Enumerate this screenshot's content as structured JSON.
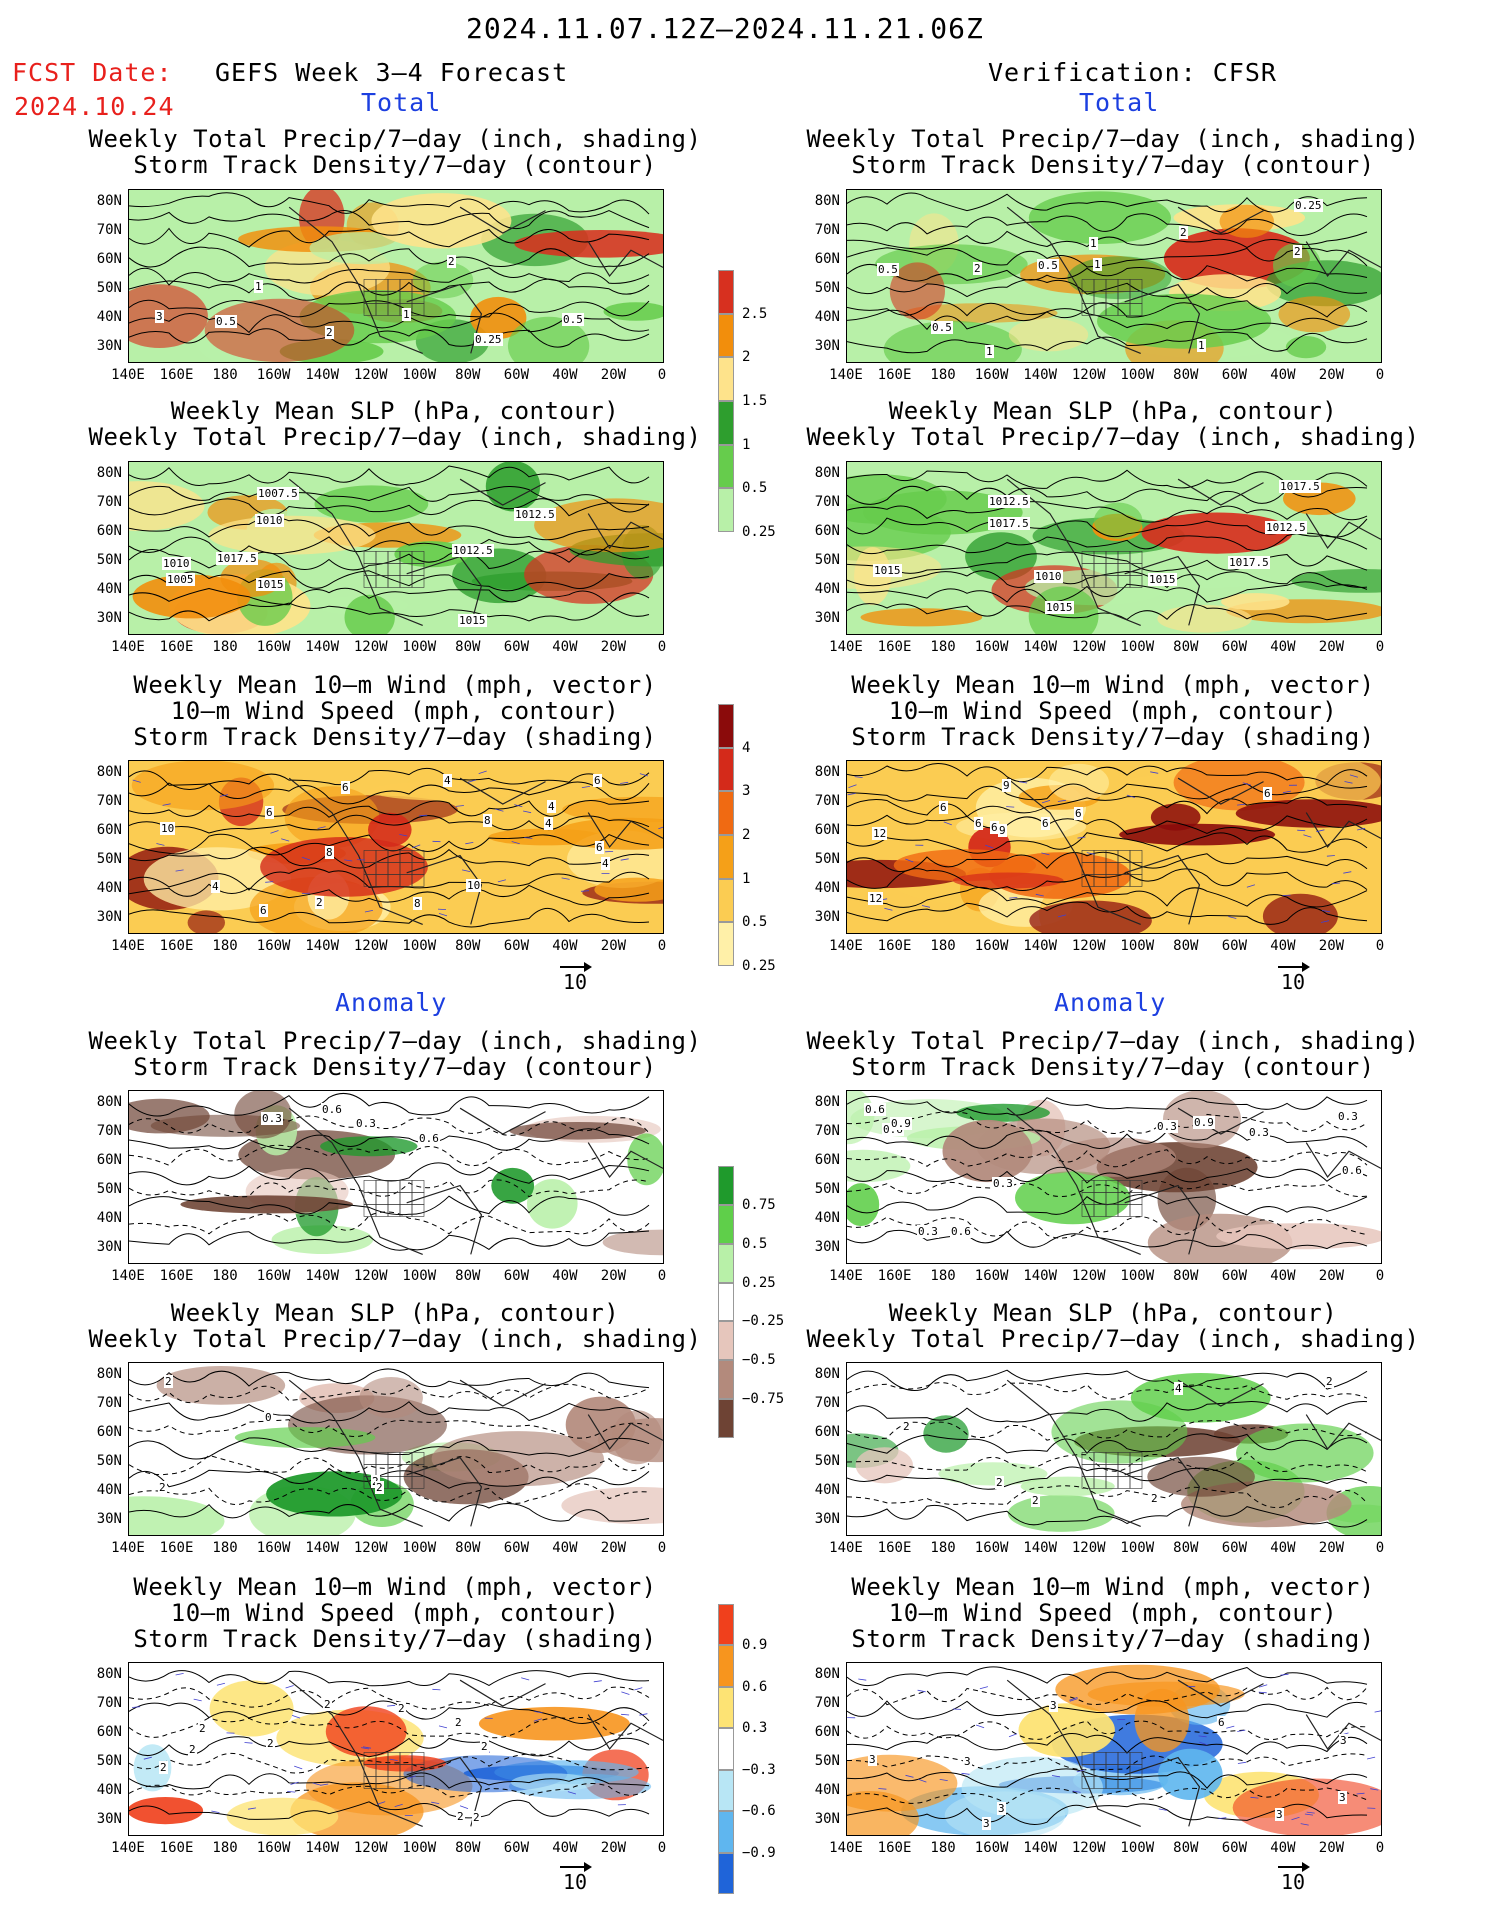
{
  "header": {
    "period": "2024.11.07.12Z–2024.11.21.06Z",
    "fcst_label": "FCST Date:",
    "fcst_date": "2024.10.24",
    "forecast_title": "GEFS Week 3–4 Forecast",
    "verification_title": "Verification: CFSR"
  },
  "sections": {
    "total": "Total",
    "anomaly": "Anomaly"
  },
  "axes": {
    "lat_labels": [
      "80N",
      "70N",
      "60N",
      "50N",
      "40N",
      "30N"
    ],
    "lon_labels": [
      "140E",
      "160E",
      "180",
      "160W",
      "140W",
      "120W",
      "100W",
      "80W",
      "60W",
      "40W",
      "20W",
      "0"
    ]
  },
  "titles": {
    "precip_storm": [
      "Weekly Total Precip/7–day (inch, shading)",
      "Storm Track Density/7–day (contour)"
    ],
    "slp_precip": [
      "Weekly Mean SLP (hPa, contour)",
      "Weekly Total Precip/7–day (inch, shading)"
    ],
    "wind": [
      "Weekly Mean 10–m Wind (mph, vector)",
      "10–m Wind Speed (mph, contour)",
      "Storm Track Density/7–day (shading)"
    ]
  },
  "vector_reference": "10",
  "colorbars": {
    "precip_total": {
      "labels": [
        "2.5",
        "2",
        "1.5",
        "1",
        "0.5",
        "0.25"
      ],
      "colors": [
        "#d7301f",
        "#f28e0c",
        "#fee38b",
        "#2e9e2e",
        "#66cc4c",
        "#b8f0a8"
      ]
    },
    "storm_total": {
      "labels": [
        "4",
        "3",
        "2",
        "1",
        "0.5",
        "0.25"
      ],
      "colors": [
        "#8b0b0b",
        "#d42a1a",
        "#f06a12",
        "#f5a018",
        "#fbcc52",
        "#fff0a8"
      ]
    },
    "precip_anom": {
      "labels": [
        "0.75",
        "0.5",
        "0.25",
        "−0.25",
        "−0.5",
        "−0.75"
      ],
      "colors": [
        "#1f9a2c",
        "#5fcf4a",
        "#b8f0a8",
        "#ffffff",
        "#e6c6bc",
        "#b38a7c",
        "#6e4334"
      ]
    },
    "storm_anom": {
      "labels": [
        "0.9",
        "0.6",
        "0.3",
        "−0.3",
        "−0.6",
        "−0.9"
      ],
      "colors": [
        "#f0401c",
        "#f7951e",
        "#fde374",
        "#ffffff",
        "#b8e6f5",
        "#5fb6ef",
        "#1f64d9"
      ]
    }
  },
  "panels": {
    "fc_tot_precip": [
      "1",
      "0.5",
      "2",
      "2",
      "3",
      "0.5",
      "1",
      "0.25"
    ],
    "ver_tot_precip": [
      "1",
      "1",
      "1",
      "2",
      "0.5",
      "0.5",
      "2",
      "0.25",
      "0.5",
      "1",
      "2"
    ],
    "fc_tot_slp": [
      "1015",
      "1012.5",
      "1010",
      "1010",
      "1012.5",
      "1005",
      "1007.5",
      "1015",
      "1017.5"
    ],
    "ver_tot_slp": [
      "1012.5",
      "1015",
      "1010",
      "1012.5",
      "1017.5",
      "1017.5",
      "1015",
      "1017.5",
      "1015"
    ],
    "fc_tot_wind": [
      "6",
      "10",
      "8",
      "4",
      "6",
      "4",
      "6",
      "4",
      "4",
      "10",
      "8",
      "4",
      "6",
      "2",
      "6",
      "8"
    ],
    "ver_tot_wind": [
      "6",
      "9",
      "12",
      "6",
      "6",
      "6",
      "9",
      "6",
      "12",
      "6"
    ],
    "fc_anom_precip": [
      "0.3",
      "0.6",
      "0.6",
      "0.3"
    ],
    "ver_anom_precip": [
      "0.3",
      "0.6",
      "0.9",
      "0.6",
      "0.3",
      "0.9",
      "0.6",
      "0.3",
      "0.6",
      "0.3",
      "0.3"
    ],
    "fc_anom_slp": [
      "0",
      "2",
      "2",
      "2",
      "2"
    ],
    "ver_anom_slp": [
      "2",
      "2",
      "2",
      "4",
      "2",
      "2"
    ],
    "fc_anom_wind": [
      "2",
      "2",
      "2",
      "2",
      "2",
      "2",
      "2",
      "2",
      "2",
      "2"
    ],
    "ver_anom_wind": [
      "3",
      "3",
      "3",
      "3",
      "3",
      "3",
      "3",
      "6",
      "3"
    ]
  }
}
